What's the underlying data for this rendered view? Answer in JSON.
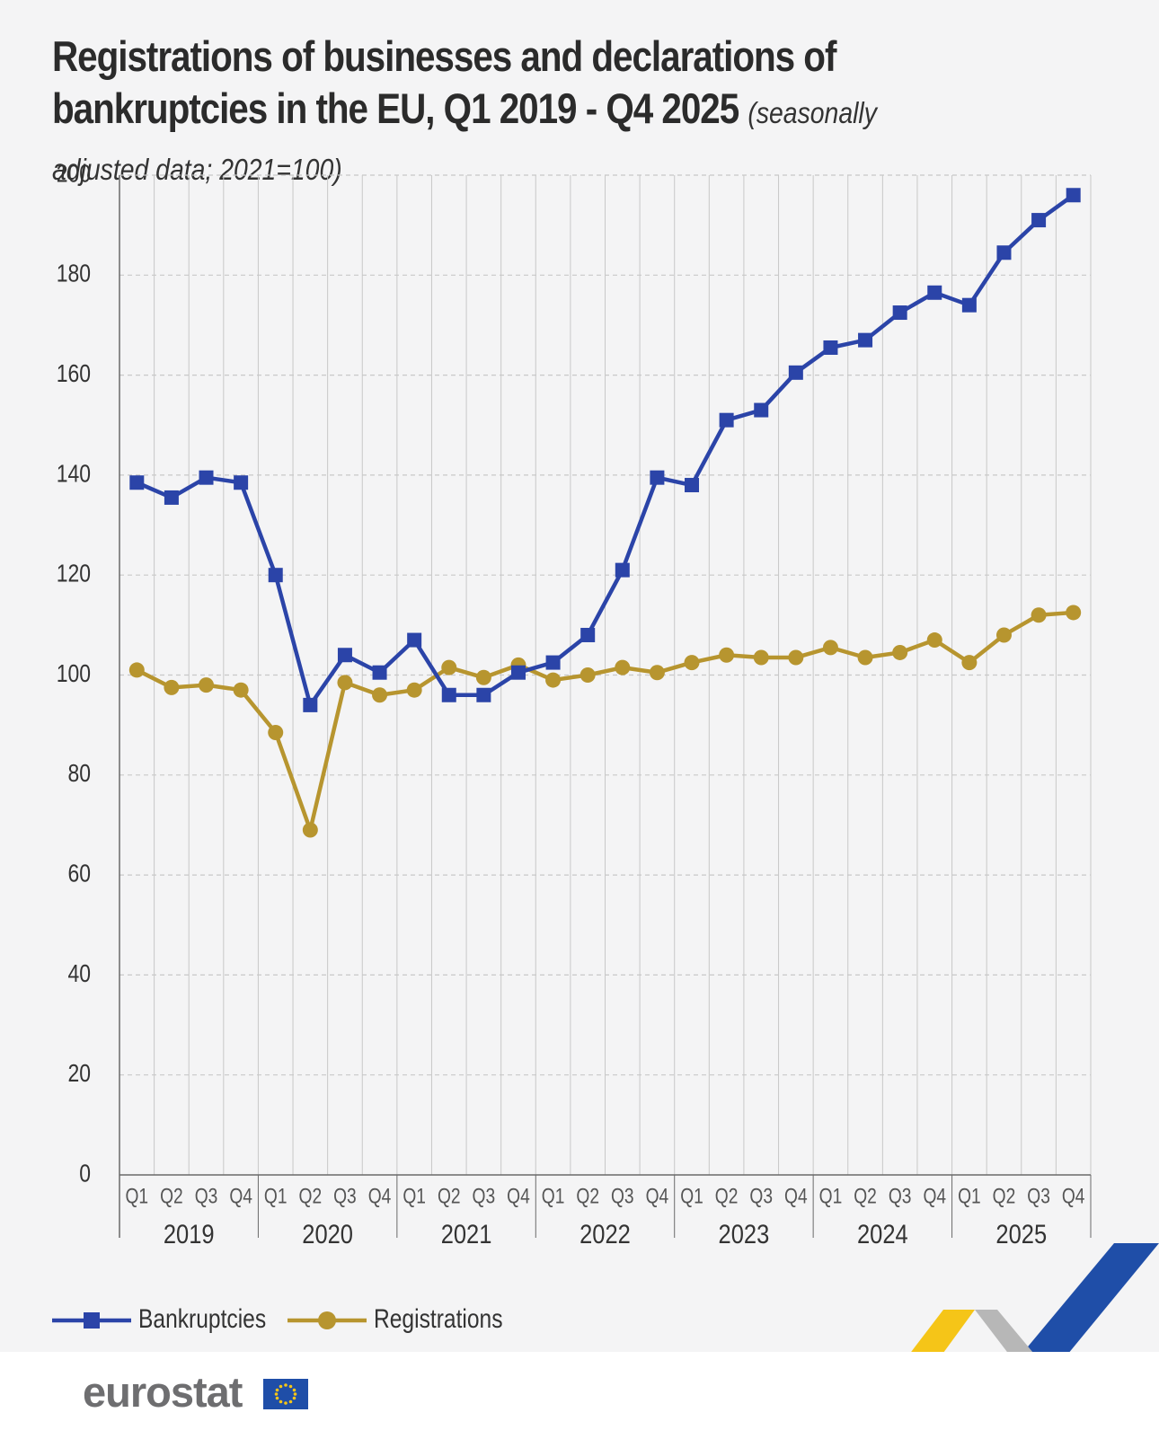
{
  "title": {
    "main": "Registrations of businesses and declarations of bankruptcies in the EU, Q1 2019 - Q4 2025",
    "subtitle": "(seasonally adjusted data; 2021=100)"
  },
  "colors": {
    "bankruptcies": "#2b44a8",
    "registrations": "#b7952f",
    "grid": "#c8c8c8",
    "axis": "#6a6a6a",
    "text": "#333333"
  },
  "chart_data": {
    "type": "line",
    "ylim": [
      0,
      200
    ],
    "yticks": [
      0,
      20,
      40,
      60,
      80,
      100,
      120,
      140,
      160,
      180,
      200
    ],
    "years": [
      "2019",
      "2020",
      "2021",
      "2022",
      "2023",
      "2024",
      "2025"
    ],
    "quarters": [
      "Q1",
      "Q2",
      "Q3",
      "Q4"
    ],
    "grid": true,
    "legend_position": "bottom-left",
    "series": [
      {
        "name": "Bankruptcies",
        "marker": "square",
        "values": [
          138.5,
          135.5,
          139.5,
          138.5,
          120,
          94,
          104,
          100.5,
          107,
          96,
          96,
          100.5,
          102.5,
          108,
          121,
          139.5,
          138,
          151,
          153,
          160.5,
          165.5,
          167,
          172.5,
          176.5,
          174,
          184.5,
          191,
          196
        ]
      },
      {
        "name": "Registrations",
        "marker": "circle",
        "values": [
          101,
          97.5,
          98,
          97,
          88.5,
          69,
          98.5,
          96,
          97,
          101.5,
          99.5,
          102,
          99,
          100,
          101.5,
          100.5,
          102.5,
          104,
          103.5,
          103.5,
          105.5,
          103.5,
          104.5,
          107,
          102.5,
          108,
          112,
          112.5
        ]
      }
    ]
  },
  "footer": {
    "logo_text": "eurostat",
    "flag_icon": "eu-flag-icon"
  }
}
